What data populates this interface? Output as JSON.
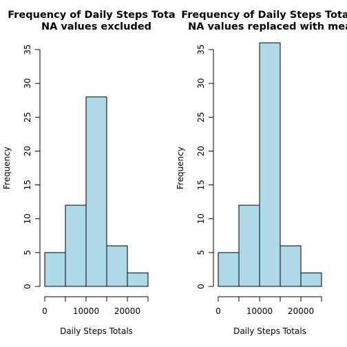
{
  "chart_data": [
    {
      "type": "bar",
      "title": "Frequency of Daily Steps Tota",
      "subtitle": "NA values excluded",
      "xlabel": "Daily Steps Totals",
      "ylabel": "Frequency",
      "bins": [
        {
          "from": 0,
          "to": 5000,
          "value": 5
        },
        {
          "from": 5000,
          "to": 10000,
          "value": 12
        },
        {
          "from": 10000,
          "to": 15000,
          "value": 28
        },
        {
          "from": 15000,
          "to": 20000,
          "value": 6
        },
        {
          "from": 20000,
          "to": 25000,
          "value": 2
        }
      ],
      "xlim": [
        0,
        25000
      ],
      "ylim": [
        0,
        35
      ],
      "x_ticks": [
        0,
        5000,
        10000,
        15000,
        20000,
        25000
      ],
      "x_tick_labels": [
        "0",
        "",
        "10000",
        "",
        "20000",
        ""
      ],
      "y_ticks": [
        0,
        5,
        10,
        15,
        20,
        25,
        30,
        35
      ],
      "y_tick_labels": [
        "0",
        "5",
        "10",
        "15",
        "20",
        "25",
        "30",
        "35"
      ],
      "grid": false,
      "colors": {
        "bar_fill": "#add8e6",
        "bar_stroke": "#000000"
      }
    },
    {
      "type": "bar",
      "title": "Frequency of Daily Steps Tota",
      "subtitle": "NA values replaced with mea",
      "xlabel": "Daily Steps Totals",
      "ylabel": "Frequency",
      "bins": [
        {
          "from": 0,
          "to": 5000,
          "value": 5
        },
        {
          "from": 5000,
          "to": 10000,
          "value": 12
        },
        {
          "from": 10000,
          "to": 15000,
          "value": 36
        },
        {
          "from": 15000,
          "to": 20000,
          "value": 6
        },
        {
          "from": 20000,
          "to": 25000,
          "value": 2
        }
      ],
      "xlim": [
        0,
        25000
      ],
      "ylim": [
        0,
        35
      ],
      "x_ticks": [
        0,
        5000,
        10000,
        15000,
        20000,
        25000
      ],
      "x_tick_labels": [
        "0",
        "",
        "10000",
        "",
        "20000",
        ""
      ],
      "y_ticks": [
        0,
        5,
        10,
        15,
        20,
        25,
        30,
        35
      ],
      "y_tick_labels": [
        "0",
        "5",
        "10",
        "15",
        "20",
        "25",
        "30",
        "35"
      ],
      "grid": false,
      "colors": {
        "bar_fill": "#add8e6",
        "bar_stroke": "#000000"
      }
    }
  ]
}
